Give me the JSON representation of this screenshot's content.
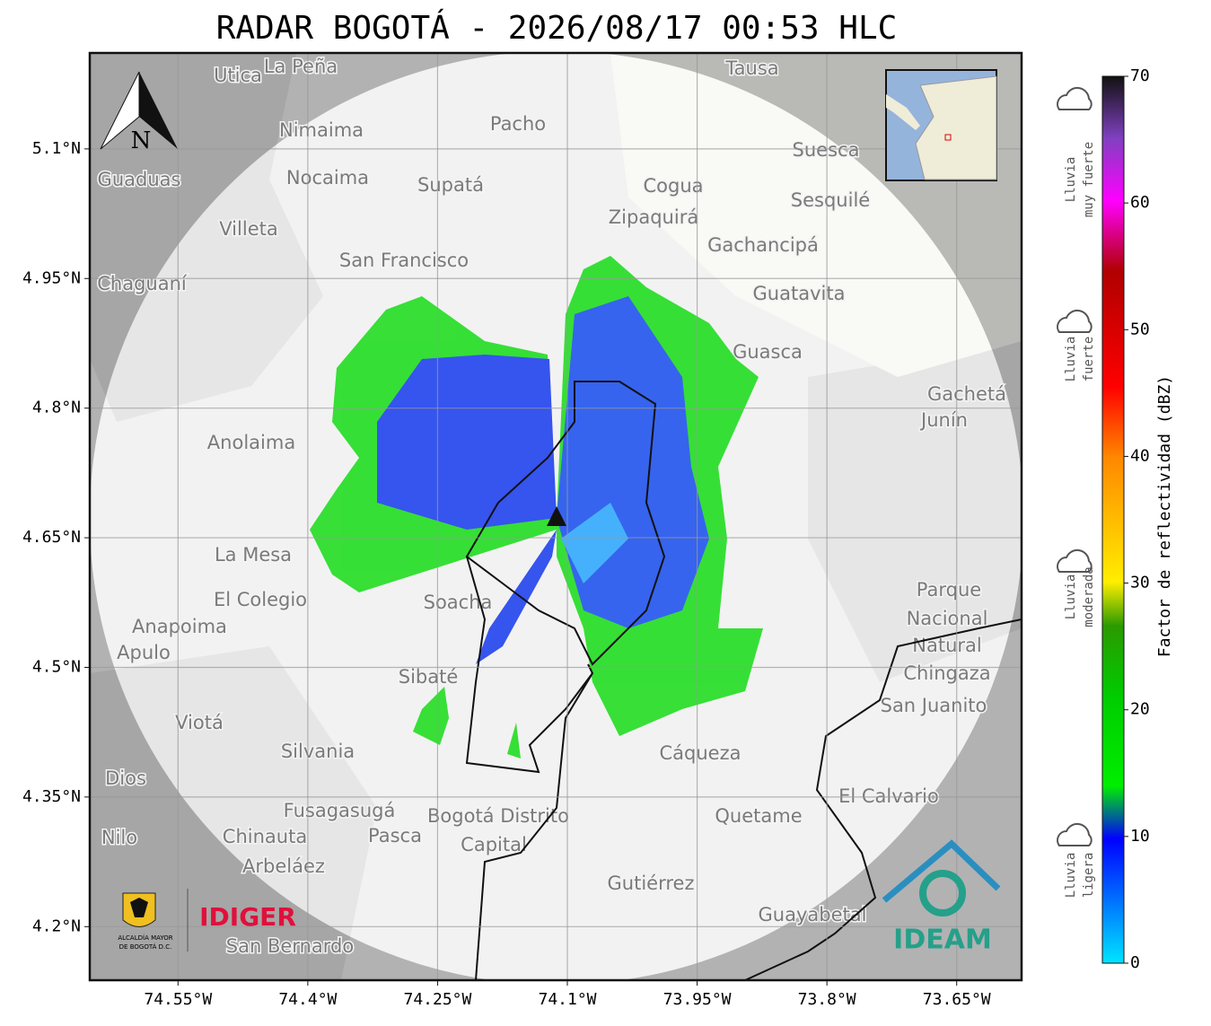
{
  "title": "RADAR BOGOTÁ - 2026/08/17 00:53 HLC",
  "xlim": [
    -74.652,
    -73.575
  ],
  "ylim": [
    4.138,
    5.211
  ],
  "xticks": [
    {
      "value": -74.55,
      "label": "74.55°W"
    },
    {
      "value": -74.4,
      "label": "74.4°W"
    },
    {
      "value": -74.25,
      "label": "74.25°W"
    },
    {
      "value": -74.1,
      "label": "74.1°W"
    },
    {
      "value": -73.95,
      "label": "73.95°W"
    },
    {
      "value": -73.8,
      "label": "73.8°W"
    },
    {
      "value": -73.65,
      "label": "73.65°W"
    }
  ],
  "yticks": [
    {
      "value": 5.1,
      "label": "5.1°N"
    },
    {
      "value": 4.95,
      "label": "4.95°N"
    },
    {
      "value": 4.8,
      "label": "4.8°N"
    },
    {
      "value": 4.65,
      "label": "4.65°N"
    },
    {
      "value": 4.5,
      "label": "4.5°N"
    },
    {
      "value": 4.35,
      "label": "4.35°N"
    },
    {
      "value": 4.2,
      "label": "4.2°N"
    }
  ],
  "colorbar": {
    "label": "Factor de reflectividad (dBZ)",
    "lim": [
      0,
      70
    ],
    "ticks": [
      0,
      10,
      20,
      30,
      40,
      50,
      60,
      70
    ]
  },
  "legend": [
    {
      "lines": [
        "Lluvia",
        "muy fuerte"
      ]
    },
    {
      "lines": [
        "Lluvia",
        "fuerte"
      ]
    },
    {
      "lines": [
        "Lluvia",
        "moderada"
      ]
    },
    {
      "lines": [
        "Lluvia",
        "ligera"
      ]
    }
  ],
  "north": "N",
  "logos": {
    "alcaldia": [
      "ALCALDÍA MAYOR",
      "DE BOGOTÁ D.C."
    ],
    "idiger": "IDIGER",
    "ideam": "IDEAM"
  },
  "places": [
    "Utica",
    "La Peña",
    "Tausa",
    "Pacho",
    "Nimaima",
    "Guaduas",
    "Nocaima",
    "Supatá",
    "Suesca",
    "Cogua",
    "Sesquilé",
    "Zipaquirá",
    "Villeta",
    "Gachancipá",
    "San Francisco",
    "Chaguaní",
    "Guatavita",
    "Guasca",
    "Gachetá",
    "Junín",
    "Anolaima",
    "La Mesa",
    "El Colegio",
    "Soacha",
    "Anapoima",
    "Apulo",
    "Sibaté",
    "Viotá",
    "Silvania",
    "Cáqueza",
    "Dios",
    "Fusagasugá",
    "Bogotá Distrito",
    "Capital",
    "Chinauta",
    "Pasca",
    "Nilo",
    "Arbeláez",
    "Gutiérrez",
    "Quetame",
    "El Calvario",
    "San Juanito",
    "Guayabetal",
    "San Bernardo",
    "Parque",
    "Nacional",
    "Natural",
    "Chingaza"
  ]
}
